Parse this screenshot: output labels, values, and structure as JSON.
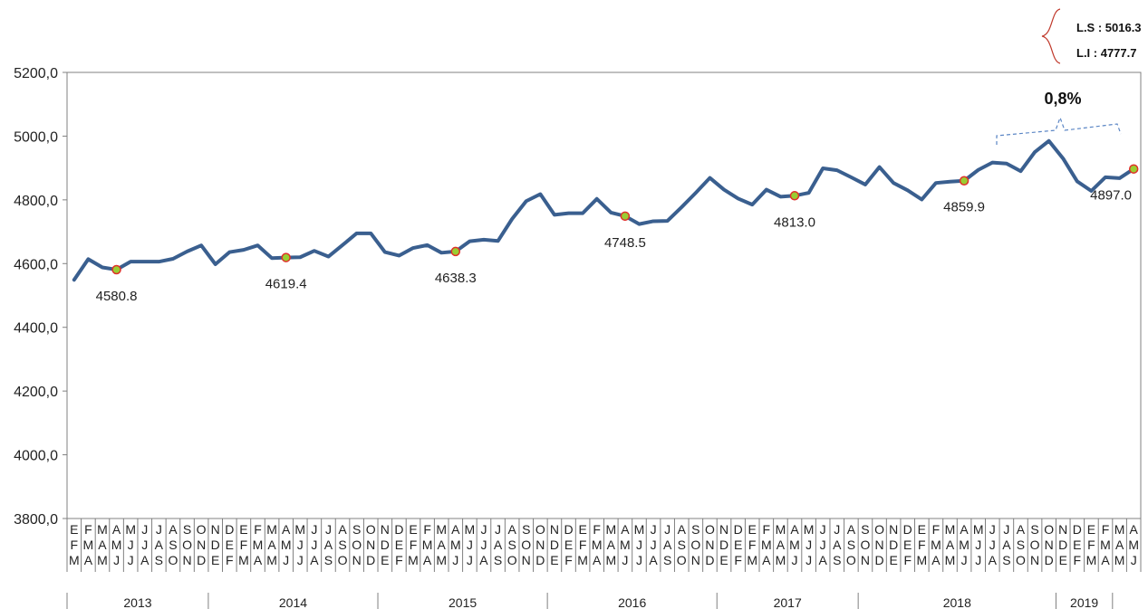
{
  "chart_data": {
    "type": "line",
    "ylim": [
      3800,
      5200
    ],
    "y_ticks": [
      "5200,0",
      "5000,0",
      "4800,0",
      "4600,0",
      "4400,0",
      "4200,0",
      "4000,0",
      "3800,0"
    ],
    "month_labels": [
      [
        "E",
        "F",
        "M"
      ],
      [
        "F",
        "M",
        "A"
      ],
      [
        "M",
        "A",
        "M"
      ],
      [
        "A",
        "M",
        "J"
      ],
      [
        "M",
        "J",
        "J"
      ],
      [
        "J",
        "J",
        "A"
      ],
      [
        "J",
        "A",
        "S"
      ],
      [
        "A",
        "S",
        "O"
      ],
      [
        "S",
        "O",
        "N"
      ],
      [
        "O",
        "N",
        "D"
      ],
      [
        "N",
        "D",
        "E"
      ],
      [
        "D",
        "E",
        "F"
      ],
      [
        "E",
        "F",
        "M"
      ],
      [
        "F",
        "M",
        "A"
      ],
      [
        "M",
        "A",
        "M"
      ],
      [
        "A",
        "M",
        "J"
      ],
      [
        "M",
        "J",
        "J"
      ],
      [
        "J",
        "J",
        "A"
      ],
      [
        "J",
        "A",
        "S"
      ],
      [
        "A",
        "S",
        "O"
      ],
      [
        "S",
        "O",
        "N"
      ],
      [
        "O",
        "N",
        "D"
      ],
      [
        "N",
        "D",
        "E"
      ],
      [
        "D",
        "E",
        "F"
      ],
      [
        "E",
        "F",
        "M"
      ],
      [
        "F",
        "M",
        "A"
      ],
      [
        "M",
        "A",
        "M"
      ],
      [
        "A",
        "M",
        "J"
      ],
      [
        "M",
        "J",
        "J"
      ],
      [
        "J",
        "J",
        "A"
      ],
      [
        "J",
        "A",
        "S"
      ],
      [
        "A",
        "S",
        "O"
      ],
      [
        "S",
        "O",
        "N"
      ],
      [
        "O",
        "N",
        "D"
      ],
      [
        "N",
        "D",
        "E"
      ],
      [
        "D",
        "E",
        "F"
      ],
      [
        "E",
        "F",
        "M"
      ],
      [
        "F",
        "M",
        "A"
      ],
      [
        "M",
        "A",
        "M"
      ],
      [
        "A",
        "M",
        "J"
      ],
      [
        "M",
        "J",
        "J"
      ],
      [
        "J",
        "J",
        "A"
      ],
      [
        "J",
        "A",
        "S"
      ],
      [
        "A",
        "S",
        "O"
      ],
      [
        "S",
        "O",
        "N"
      ],
      [
        "O",
        "N",
        "D"
      ],
      [
        "N",
        "D",
        "E"
      ],
      [
        "D",
        "E",
        "F"
      ],
      [
        "E",
        "F",
        "M"
      ],
      [
        "F",
        "M",
        "A"
      ],
      [
        "M",
        "A",
        "M"
      ],
      [
        "A",
        "M",
        "J"
      ],
      [
        "M",
        "J",
        "J"
      ],
      [
        "J",
        "J",
        "A"
      ],
      [
        "J",
        "A",
        "S"
      ],
      [
        "A",
        "S",
        "O"
      ],
      [
        "S",
        "O",
        "N"
      ],
      [
        "O",
        "N",
        "D"
      ],
      [
        "N",
        "D",
        "E"
      ],
      [
        "D",
        "E",
        "F"
      ],
      [
        "E",
        "F",
        "M"
      ],
      [
        "F",
        "M",
        "A"
      ],
      [
        "M",
        "A",
        "M"
      ],
      [
        "A",
        "M",
        "J"
      ],
      [
        "M",
        "J",
        "J"
      ],
      [
        "J",
        "J",
        "A"
      ],
      [
        "J",
        "A",
        "S"
      ],
      [
        "A",
        "S",
        "O"
      ],
      [
        "S",
        "O",
        "N"
      ],
      [
        "O",
        "N",
        "D"
      ],
      [
        "N",
        "D",
        "E"
      ],
      [
        "D",
        "E",
        "F"
      ],
      [
        "E",
        "F",
        "M"
      ],
      [
        "F",
        "M",
        "A"
      ],
      [
        "M",
        "A",
        "M"
      ],
      [
        "A",
        "M",
        "J"
      ]
    ],
    "years": [
      {
        "label": "2013",
        "start": 0,
        "count": 10
      },
      {
        "label": "2014",
        "start": 10,
        "count": 12
      },
      {
        "label": "2015",
        "start": 22,
        "count": 12
      },
      {
        "label": "2016",
        "start": 34,
        "count": 12
      },
      {
        "label": "2017",
        "start": 46,
        "count": 10
      },
      {
        "label": "2018",
        "start": 56,
        "count": 14
      },
      {
        "label": "2019",
        "start": 70,
        "count": 4
      }
    ],
    "series": [
      {
        "color": "#3a5f8f",
        "values": [
          4549,
          4614,
          4588,
          4581,
          4606,
          4606,
          4606,
          4615,
          4638,
          4657,
          4598,
          4636,
          4643,
          4657,
          4617,
          4619,
          4620,
          4640,
          4622,
          4658,
          4695,
          4695,
          4636,
          4625,
          4649,
          4658,
          4634,
          4638,
          4670,
          4675,
          4671,
          4740,
          4796,
          4818,
          4753,
          4758,
          4758,
          4803,
          4760,
          4749,
          4724,
          4733,
          4734,
          4777,
          4822,
          4869,
          4832,
          4804,
          4785,
          4832,
          4810,
          4813,
          4822,
          4899,
          4893,
          4871,
          4848,
          4903,
          4853,
          4830,
          4801,
          4853,
          4857,
          4860,
          4894,
          4917,
          4914,
          4890,
          4950,
          4985,
          4930,
          4858,
          4828,
          4871,
          4868,
          4897
        ]
      }
    ],
    "annotations": [
      {
        "index": 3,
        "label": "4580.8"
      },
      {
        "index": 15,
        "label": "4619.4"
      },
      {
        "index": 27,
        "label": "4638.3"
      },
      {
        "index": 39,
        "label": "4748.5"
      },
      {
        "index": 51,
        "label": "4813.0"
      },
      {
        "index": 63,
        "label": "4859.9"
      },
      {
        "index": 75,
        "label": "4897.0"
      }
    ],
    "limits": {
      "upper": "L.S : 5016.3",
      "lower": "L.I : 4777.7"
    },
    "change_label": "0,8%",
    "colors": {
      "line": "#3a5f8f",
      "marker_fill": "#9acd32",
      "marker_stroke": "#e0302a",
      "brace": "#c0392b",
      "dashed": "#5b86c5"
    }
  }
}
